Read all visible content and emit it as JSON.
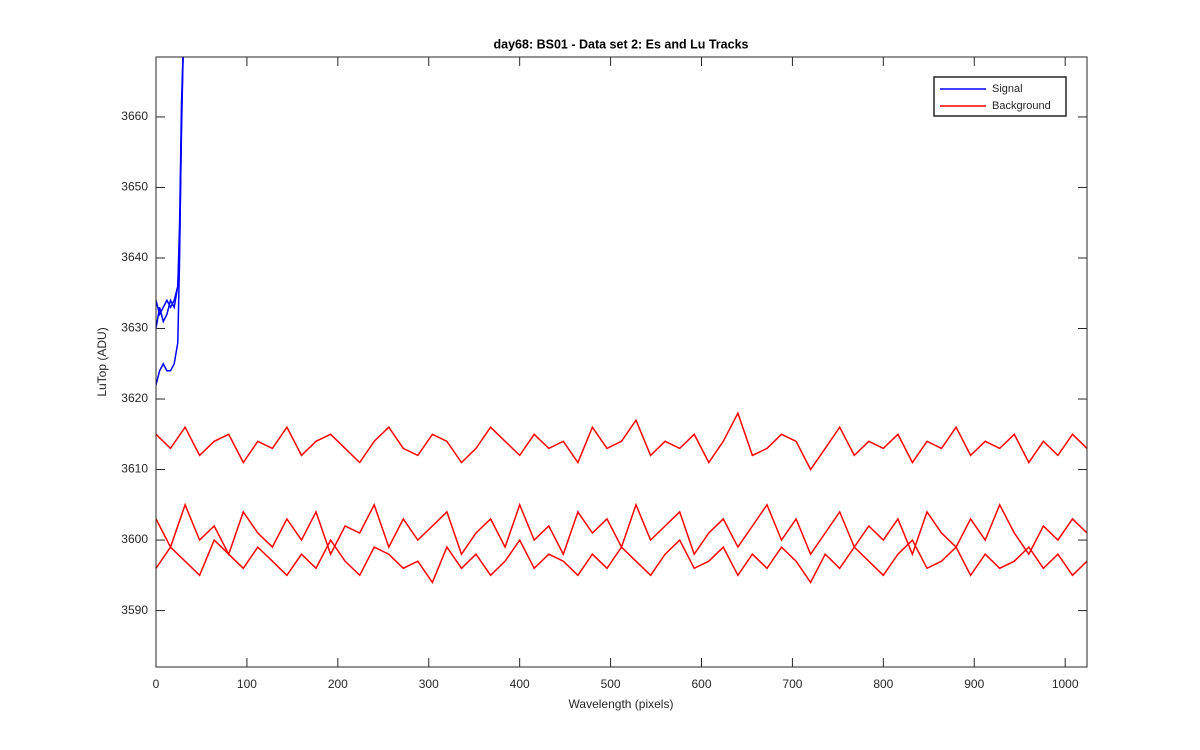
{
  "chart_data": {
    "type": "line",
    "title": "day68: BS01 - Data set 2: Es and Lu Tracks",
    "xlabel": "Wavelength (pixels)",
    "ylabel": "LuTop (ADU)",
    "xlim": [
      0,
      1024
    ],
    "ylim": [
      3582,
      3668.5
    ],
    "xticks": [
      0,
      100,
      200,
      300,
      400,
      500,
      600,
      700,
      800,
      900,
      1000
    ],
    "yticks": [
      3590,
      3600,
      3610,
      3620,
      3630,
      3640,
      3650,
      3660
    ],
    "legend": "northeast",
    "series": [
      {
        "name": "Signal",
        "color": "#0000ff",
        "x": [
          0,
          4,
          8,
          12,
          16,
          20,
          24,
          26,
          28,
          30
        ],
        "lines": [
          [
            3622,
            3624,
            3625,
            3624,
            3624,
            3625,
            3628,
            3640,
            3660,
            3670
          ],
          [
            3634,
            3632,
            3633,
            3634,
            3633,
            3634,
            3636,
            3645,
            3662,
            3670
          ],
          [
            3630,
            3633,
            3631,
            3632,
            3634,
            3633,
            3636,
            3642,
            3658,
            3670
          ]
        ]
      },
      {
        "name": "Background",
        "color": "#ff0000",
        "x": [
          0,
          16,
          32,
          48,
          64,
          80,
          96,
          112,
          128,
          144,
          160,
          176,
          192,
          208,
          224,
          240,
          256,
          272,
          288,
          304,
          320,
          336,
          352,
          368,
          384,
          400,
          416,
          432,
          448,
          464,
          480,
          496,
          512,
          528,
          544,
          560,
          576,
          592,
          608,
          624,
          640,
          656,
          672,
          688,
          704,
          720,
          736,
          752,
          768,
          784,
          800,
          816,
          832,
          848,
          864,
          880,
          896,
          912,
          928,
          944,
          960,
          976,
          992,
          1008,
          1024
        ],
        "lines": [
          [
            3615,
            3613,
            3616,
            3612,
            3614,
            3615,
            3611,
            3614,
            3613,
            3616,
            3612,
            3614,
            3615,
            3613,
            3611,
            3614,
            3616,
            3613,
            3612,
            3615,
            3614,
            3611,
            3613,
            3616,
            3614,
            3612,
            3615,
            3613,
            3614,
            3611,
            3616,
            3613,
            3614,
            3617,
            3612,
            3614,
            3613,
            3615,
            3611,
            3614,
            3618,
            3612,
            3613,
            3615,
            3614,
            3610,
            3613,
            3616,
            3612,
            3614,
            3613,
            3615,
            3611,
            3614,
            3613,
            3616,
            3612,
            3614,
            3613,
            3615,
            3611,
            3614,
            3612,
            3615,
            3613
          ],
          [
            3603,
            3599,
            3605,
            3600,
            3602,
            3598,
            3604,
            3601,
            3599,
            3603,
            3600,
            3604,
            3598,
            3602,
            3601,
            3605,
            3599,
            3603,
            3600,
            3602,
            3604,
            3598,
            3601,
            3603,
            3599,
            3605,
            3600,
            3602,
            3598,
            3604,
            3601,
            3603,
            3599,
            3605,
            3600,
            3602,
            3604,
            3598,
            3601,
            3603,
            3599,
            3602,
            3605,
            3600,
            3603,
            3598,
            3601,
            3604,
            3599,
            3602,
            3600,
            3603,
            3598,
            3604,
            3601,
            3599,
            3603,
            3600,
            3605,
            3601,
            3598,
            3602,
            3600,
            3603,
            3601
          ],
          [
            3596,
            3599,
            3597,
            3595,
            3600,
            3598,
            3596,
            3599,
            3597,
            3595,
            3598,
            3596,
            3600,
            3597,
            3595,
            3599,
            3598,
            3596,
            3597,
            3594,
            3599,
            3596,
            3598,
            3595,
            3597,
            3600,
            3596,
            3598,
            3597,
            3595,
            3598,
            3596,
            3599,
            3597,
            3595,
            3598,
            3600,
            3596,
            3597,
            3599,
            3595,
            3598,
            3596,
            3599,
            3597,
            3594,
            3598,
            3596,
            3599,
            3597,
            3595,
            3598,
            3600,
            3596,
            3597,
            3599,
            3595,
            3598,
            3596,
            3597,
            3599,
            3596,
            3598,
            3595,
            3597
          ]
        ]
      }
    ]
  }
}
